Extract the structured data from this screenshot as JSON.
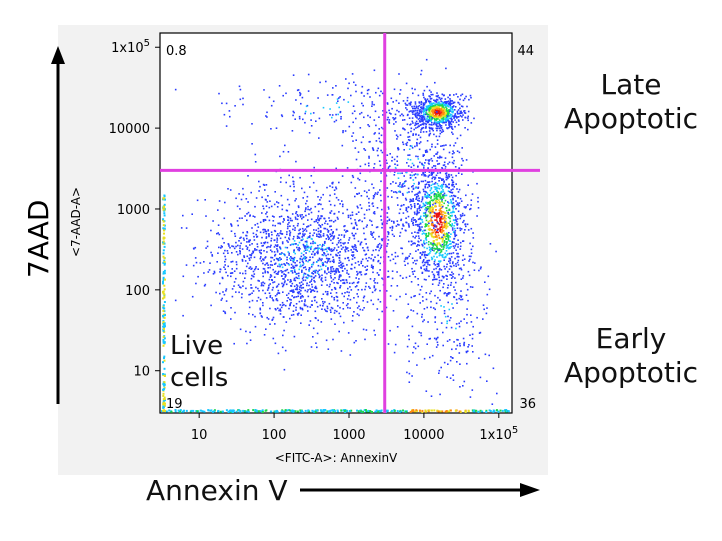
{
  "chart_data": {
    "type": "scatter",
    "subtype": "flow-cytometry-density-dot-plot",
    "x_axis": {
      "label": "<FITC-A>: AnnexinV",
      "scale": "log",
      "range": [
        3,
        150000
      ],
      "ticks": [
        {
          "value": 10,
          "label": "10"
        },
        {
          "value": 100,
          "label": "100"
        },
        {
          "value": 1000,
          "label": "1000"
        },
        {
          "value": 10000,
          "label": "10000"
        },
        {
          "value": 100000,
          "label": "1x10^5"
        }
      ]
    },
    "y_axis": {
      "label": "<7-AAD-A>",
      "scale": "log",
      "range": [
        3,
        150000
      ],
      "ticks": [
        {
          "value": 10,
          "label": "10"
        },
        {
          "value": 100,
          "label": "100"
        },
        {
          "value": 1000,
          "label": "1000"
        },
        {
          "value": 10000,
          "label": "10000"
        },
        {
          "value": 100000,
          "label": "1x10^5"
        }
      ]
    },
    "gates": {
      "x": 3000,
      "y": 3000,
      "color": "#e040e0"
    },
    "quadrant_percentages": {
      "upper_left": "0.8",
      "upper_right": "44",
      "lower_left": "19",
      "lower_right": "36"
    },
    "populations": [
      {
        "label": "Live cells",
        "x_center": 300,
        "y_center": 300
      },
      {
        "label": "Early apoptotic",
        "x_center": 15000,
        "y_center": 800
      },
      {
        "label": "Late apoptotic",
        "x_center": 15000,
        "y_center": 16000
      }
    ],
    "density_colors": [
      "#2a3cff",
      "#18c8ff",
      "#1ed84a",
      "#e8e020",
      "#ff8a10",
      "#e81010"
    ]
  },
  "annotations": {
    "late": "Late\nApoptotic",
    "early": "Early\nApoptotic",
    "live": "Live\ncells",
    "x_big_label": "Annexin V",
    "y_big_label": "7AAD"
  },
  "colors": {
    "gate_line": "#e040e0",
    "plot_bg": "#ffffff",
    "panel_bg": "#f2f2f2",
    "arrow": "#000000"
  }
}
